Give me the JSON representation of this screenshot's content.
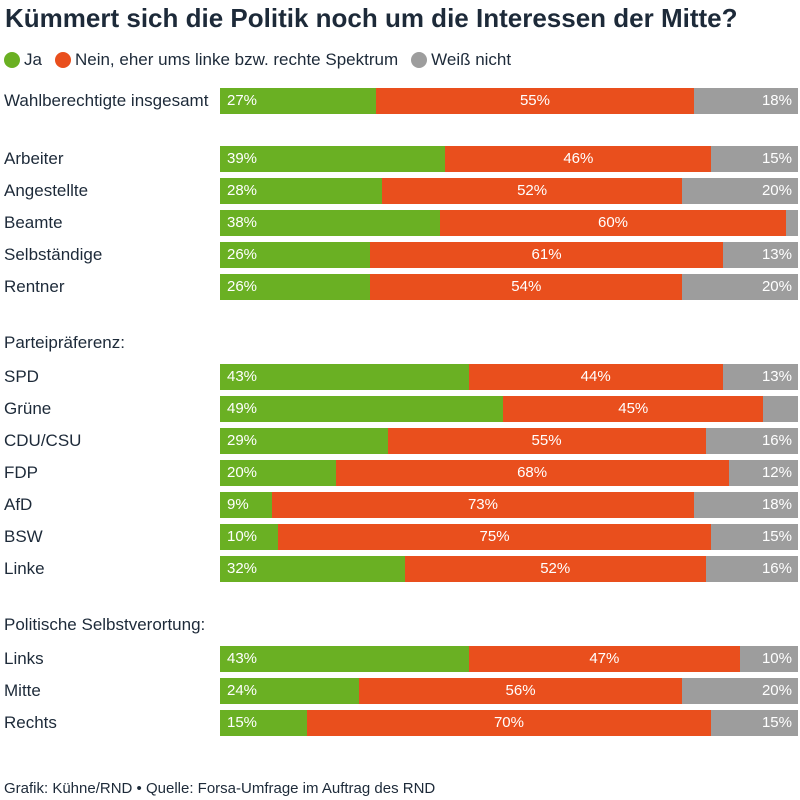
{
  "chart_data": {
    "type": "bar",
    "orientation": "horizontal",
    "stacked": true,
    "title": "Kümmert sich die Politik noch um die Interessen der Mitte?",
    "unit": "%",
    "xlim": [
      0,
      100
    ],
    "grid": false,
    "legend_position": "top-left",
    "series": [
      {
        "name": "Ja",
        "color": "#6ab023"
      },
      {
        "name": "Nein, eher ums linke bzw. rechte Spektrum",
        "color": "#e94f1d"
      },
      {
        "name": "Weiß nicht",
        "color": "#9d9d9d"
      }
    ],
    "groups": [
      {
        "rows": [
          {
            "category": "Wahlberechtigte insgesamt",
            "values": [
              27,
              55,
              18
            ],
            "labels": [
              "27%",
              "55%",
              "18%"
            ]
          }
        ]
      },
      {
        "rows": [
          {
            "category": "Arbeiter",
            "values": [
              39,
              46,
              15
            ],
            "labels": [
              "39%",
              "46%",
              "15%"
            ]
          },
          {
            "category": "Angestellte",
            "values": [
              28,
              52,
              20
            ],
            "labels": [
              "28%",
              "52%",
              "20%"
            ]
          },
          {
            "category": "Beamte",
            "values": [
              38,
              60,
              2
            ],
            "labels": [
              "38%",
              "60%",
              ""
            ]
          },
          {
            "category": "Selbständige",
            "values": [
              26,
              61,
              13
            ],
            "labels": [
              "26%",
              "61%",
              "13%"
            ]
          },
          {
            "category": "Rentner",
            "values": [
              26,
              54,
              20
            ],
            "labels": [
              "26%",
              "54%",
              "20%"
            ]
          }
        ]
      },
      {
        "heading": "Parteipräferenz:",
        "rows": [
          {
            "category": "SPD",
            "values": [
              43,
              44,
              13
            ],
            "labels": [
              "43%",
              "44%",
              "13%"
            ]
          },
          {
            "category": "Grüne",
            "values": [
              49,
              45,
              6
            ],
            "labels": [
              "49%",
              "45%",
              ""
            ]
          },
          {
            "category": "CDU/CSU",
            "values": [
              29,
              55,
              16
            ],
            "labels": [
              "29%",
              "55%",
              "16%"
            ]
          },
          {
            "category": "FDP",
            "values": [
              20,
              68,
              12
            ],
            "labels": [
              "20%",
              "68%",
              "12%"
            ]
          },
          {
            "category": "AfD",
            "values": [
              9,
              73,
              18
            ],
            "labels": [
              "9%",
              "73%",
              "18%"
            ]
          },
          {
            "category": "BSW",
            "values": [
              10,
              75,
              15
            ],
            "labels": [
              "10%",
              "75%",
              "15%"
            ]
          },
          {
            "category": "Linke",
            "values": [
              32,
              52,
              16
            ],
            "labels": [
              "32%",
              "52%",
              "16%"
            ]
          }
        ]
      },
      {
        "heading": "Politische Selbstverortung:",
        "rows": [
          {
            "category": "Links",
            "values": [
              43,
              47,
              10
            ],
            "labels": [
              "43%",
              "47%",
              "10%"
            ]
          },
          {
            "category": "Mitte",
            "values": [
              24,
              56,
              20
            ],
            "labels": [
              "24%",
              "56%",
              "20%"
            ]
          },
          {
            "category": "Rechts",
            "values": [
              15,
              70,
              15
            ],
            "labels": [
              "15%",
              "70%",
              "15%"
            ]
          }
        ]
      }
    ],
    "footnote": "Grafik: Kühne/RND • Quelle: Forsa-Umfrage im Auftrag des RND"
  }
}
